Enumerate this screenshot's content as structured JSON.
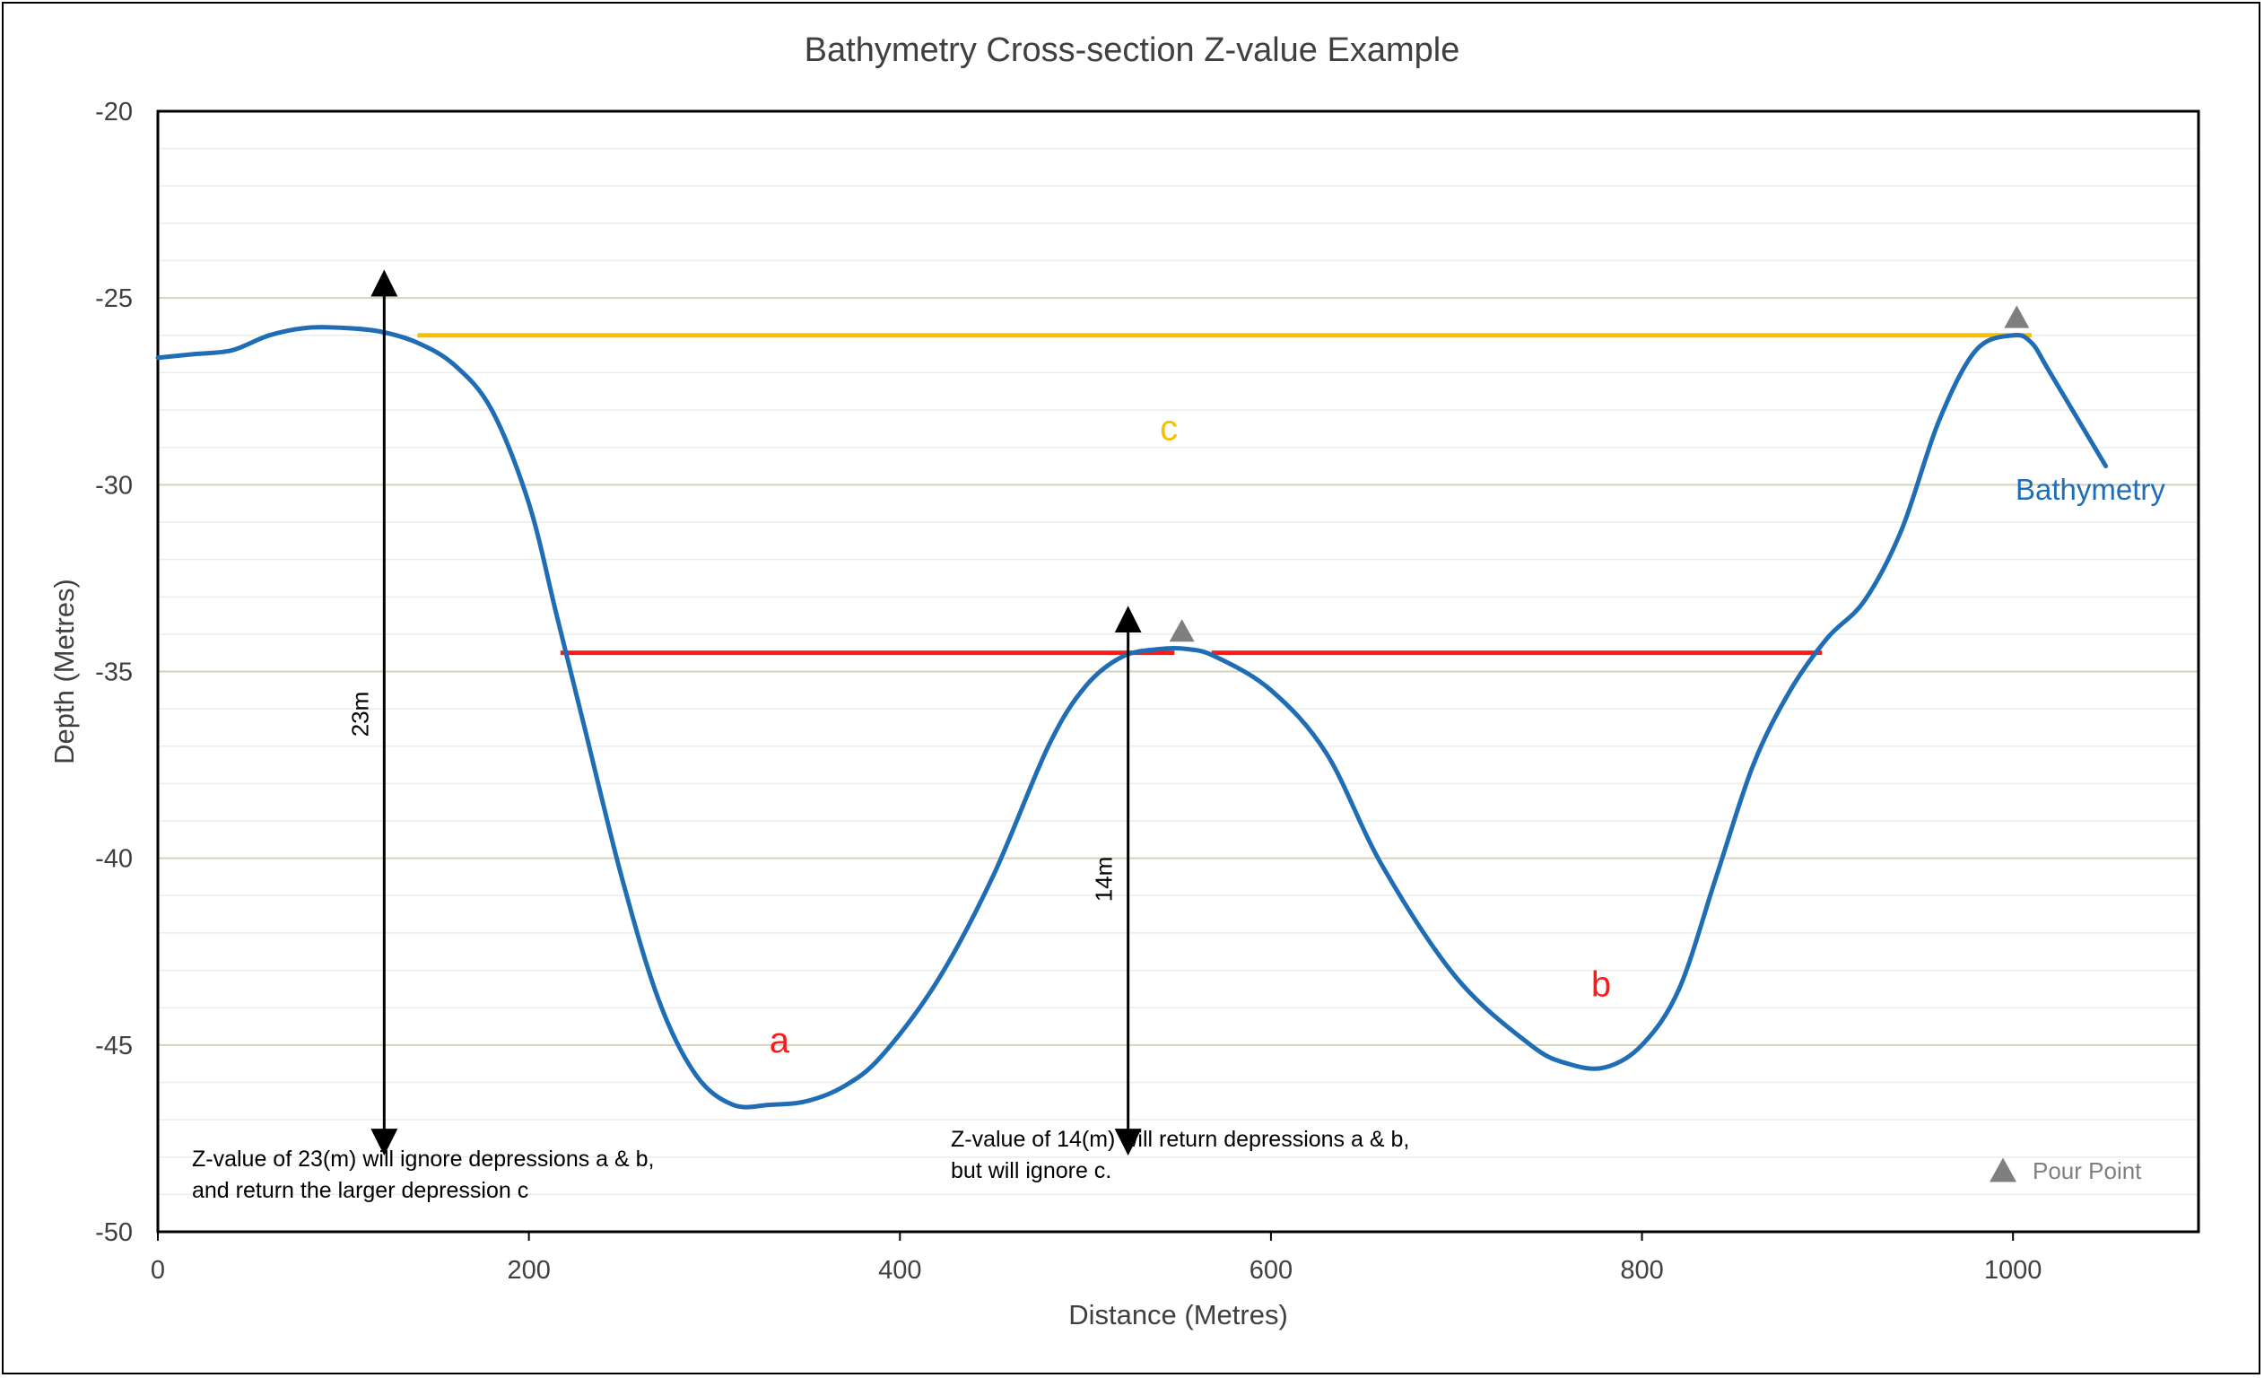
{
  "chart_data": {
    "type": "line",
    "title": "Bathymetry Cross-section Z-value Example",
    "xlabel": "Distance (Metres)",
    "ylabel": "Depth (Metres)",
    "xlim": [
      0,
      1100
    ],
    "ylim": [
      -50,
      -20
    ],
    "x_ticks": [
      0,
      200,
      400,
      600,
      800,
      1000
    ],
    "y_ticks": [
      -20,
      -25,
      -30,
      -35,
      -40,
      -45,
      -50
    ],
    "x_tick_labels": [
      "0",
      "200",
      "400",
      "600",
      "800",
      "1000"
    ],
    "y_tick_labels": [
      "-20",
      "-25",
      "-30",
      "-35",
      "-40",
      "-45",
      "-50"
    ],
    "grid": true,
    "series": [
      {
        "name": "Bathymetry",
        "color": "#1f6eb5",
        "x": [
          0,
          20,
          40,
          60,
          80,
          100,
          120,
          140,
          160,
          180,
          200,
          215,
          230,
          250,
          270,
          290,
          310,
          330,
          350,
          370,
          390,
          420,
          450,
          480,
          500,
          520,
          540,
          555,
          570,
          600,
          630,
          660,
          700,
          740,
          760,
          780,
          800,
          820,
          840,
          860,
          880,
          900,
          920,
          940,
          960,
          980,
          1000,
          1010,
          1020,
          1050
        ],
        "y": [
          -26.6,
          -26.5,
          -26.4,
          -26.0,
          -25.8,
          -25.8,
          -25.9,
          -26.2,
          -26.8,
          -28.0,
          -30.5,
          -33.5,
          -36.5,
          -40.5,
          -43.8,
          -45.8,
          -46.6,
          -46.6,
          -46.5,
          -46.1,
          -45.3,
          -43.3,
          -40.5,
          -37.0,
          -35.4,
          -34.6,
          -34.4,
          -34.4,
          -34.6,
          -35.5,
          -37.2,
          -40.2,
          -43.2,
          -45.0,
          -45.5,
          -45.6,
          -45.0,
          -43.5,
          -40.5,
          -37.5,
          -35.5,
          -34.1,
          -33.1,
          -31.2,
          -28.3,
          -26.4,
          -26.0,
          -26.2,
          -27.0,
          -29.5
        ]
      }
    ],
    "overlays": [
      {
        "label": "c",
        "depth": -26,
        "x_start": 140,
        "x_end": 1010,
        "color": "#f5c000",
        "label_x": 545,
        "label_y": -28.8
      },
      {
        "label": "a",
        "depth": -34.5,
        "x_start": 217,
        "x_end": 548,
        "color": "#ff1a1a",
        "label_x": 335,
        "label_y": -45.2
      },
      {
        "label": "b",
        "depth": -34.5,
        "x_start": 568,
        "x_end": 897,
        "color": "#ff1a1a",
        "label_x": 778,
        "label_y": -43.7
      }
    ],
    "pour_points": [
      {
        "x": 552,
        "y": -33.9
      },
      {
        "x": 1002,
        "y": -25.5
      }
    ],
    "dimension_arrows": [
      {
        "label": "23m",
        "x": 122,
        "y_top": -24.6,
        "y_bottom": -47.6
      },
      {
        "label": "14m",
        "x": 523,
        "y_top": -33.6,
        "y_bottom": -47.6
      }
    ],
    "annotations": [
      {
        "lines": [
          "Z-value of 23(m) will ignore depressions a & b,",
          "and return the larger depression c"
        ]
      },
      {
        "lines": [
          "Z-value of 14(m) will return depressions a & b,",
          "but will ignore c."
        ]
      }
    ],
    "series_label": "Bathymetry",
    "legend": {
      "entry": "Pour Point",
      "marker_color": "#7f7f7f",
      "placement": "bottom-right"
    }
  }
}
